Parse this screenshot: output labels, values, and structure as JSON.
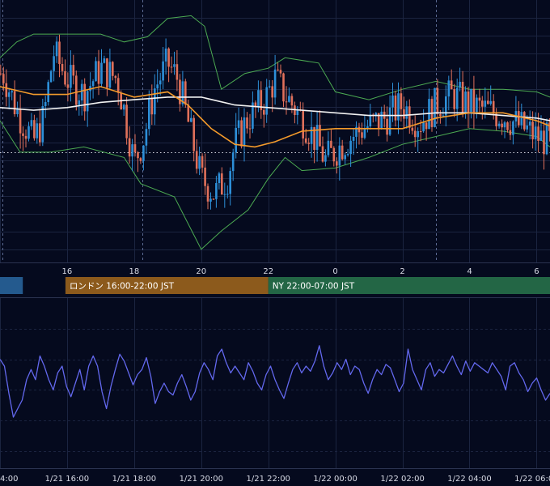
{
  "colors": {
    "background": "#050a1e",
    "grid": "#1b2440",
    "up_candle": "#2d8fd8",
    "down_candle": "#e0705a",
    "bollinger": "#4caa52",
    "ma_short": "#f39a2b",
    "ma_long": "#f2f2f2",
    "oscillator": "#6368ee",
    "session_tokyo": "#245a8e",
    "session_london": "#8c5a1c",
    "session_ny": "#236645",
    "axis_text": "#d8dbe6"
  },
  "chart_data": [
    {
      "type": "candlestick",
      "title": "",
      "hour_ticks": [
        {
          "hour": 14,
          "label": ""
        },
        {
          "hour": 16,
          "label": "16"
        },
        {
          "hour": 18,
          "label": "18"
        },
        {
          "hour": 20,
          "label": "20"
        },
        {
          "hour": 22,
          "label": "22"
        },
        {
          "hour": 24,
          "label": "0"
        },
        {
          "hour": 26,
          "label": "2"
        },
        {
          "hour": 28,
          "label": "4"
        },
        {
          "hour": 30,
          "label": "6"
        }
      ],
      "x_range_hours": [
        14,
        30.4
      ],
      "y_range": [
        0,
        100
      ],
      "reference_level": 42,
      "session_markers_hours": [
        14.08,
        18.25,
        27.0
      ],
      "close_path": [
        {
          "hour": 14.1,
          "value": 72
        },
        {
          "hour": 14.5,
          "value": 58
        },
        {
          "hour": 15.0,
          "value": 46
        },
        {
          "hour": 15.3,
          "value": 55
        },
        {
          "hour": 15.6,
          "value": 80
        },
        {
          "hour": 16.0,
          "value": 70
        },
        {
          "hour": 16.5,
          "value": 64
        },
        {
          "hour": 17.0,
          "value": 74
        },
        {
          "hour": 17.5,
          "value": 70
        },
        {
          "hour": 17.7,
          "value": 58
        },
        {
          "hour": 18.0,
          "value": 38
        },
        {
          "hour": 18.3,
          "value": 48
        },
        {
          "hour": 18.6,
          "value": 66
        },
        {
          "hour": 19.0,
          "value": 76
        },
        {
          "hour": 19.3,
          "value": 70
        },
        {
          "hour": 19.6,
          "value": 54
        },
        {
          "hour": 20.0,
          "value": 32
        },
        {
          "hour": 20.4,
          "value": 26
        },
        {
          "hour": 20.8,
          "value": 33
        },
        {
          "hour": 21.0,
          "value": 45
        },
        {
          "hour": 21.4,
          "value": 55
        },
        {
          "hour": 21.9,
          "value": 62
        },
        {
          "hour": 22.2,
          "value": 70
        },
        {
          "hour": 22.5,
          "value": 64
        },
        {
          "hour": 23.0,
          "value": 55
        },
        {
          "hour": 23.4,
          "value": 47
        },
        {
          "hour": 23.7,
          "value": 39
        },
        {
          "hour": 24.2,
          "value": 45
        },
        {
          "hour": 24.8,
          "value": 51
        },
        {
          "hour": 25.5,
          "value": 55
        },
        {
          "hour": 26.0,
          "value": 60
        },
        {
          "hour": 26.5,
          "value": 53
        },
        {
          "hour": 27.0,
          "value": 60
        },
        {
          "hour": 27.5,
          "value": 64
        },
        {
          "hour": 28.0,
          "value": 60
        },
        {
          "hour": 28.5,
          "value": 58
        },
        {
          "hour": 29.0,
          "value": 56
        },
        {
          "hour": 29.5,
          "value": 52
        },
        {
          "hour": 30.0,
          "value": 48
        },
        {
          "hour": 30.4,
          "value": 46
        }
      ],
      "bollinger_upper": [
        {
          "hour": 14.0,
          "value": 78
        },
        {
          "hour": 14.5,
          "value": 84
        },
        {
          "hour": 15.0,
          "value": 87
        },
        {
          "hour": 16.0,
          "value": 87
        },
        {
          "hour": 17.0,
          "value": 87
        },
        {
          "hour": 17.7,
          "value": 84
        },
        {
          "hour": 18.4,
          "value": 86
        },
        {
          "hour": 19.0,
          "value": 93
        },
        {
          "hour": 19.7,
          "value": 94
        },
        {
          "hour": 20.1,
          "value": 90
        },
        {
          "hour": 20.6,
          "value": 66
        },
        {
          "hour": 21.3,
          "value": 72
        },
        {
          "hour": 22.0,
          "value": 74
        },
        {
          "hour": 22.5,
          "value": 78
        },
        {
          "hour": 23.5,
          "value": 76
        },
        {
          "hour": 24.0,
          "value": 65
        },
        {
          "hour": 25.0,
          "value": 62
        },
        {
          "hour": 26.0,
          "value": 66
        },
        {
          "hour": 27.0,
          "value": 69
        },
        {
          "hour": 28.0,
          "value": 66
        },
        {
          "hour": 29.0,
          "value": 66
        },
        {
          "hour": 30.0,
          "value": 65
        },
        {
          "hour": 30.4,
          "value": 63
        }
      ],
      "bollinger_lower": [
        {
          "hour": 14.0,
          "value": 54
        },
        {
          "hour": 14.6,
          "value": 42
        },
        {
          "hour": 15.5,
          "value": 42
        },
        {
          "hour": 16.5,
          "value": 44
        },
        {
          "hour": 17.7,
          "value": 40
        },
        {
          "hour": 18.2,
          "value": 30
        },
        {
          "hour": 19.2,
          "value": 25
        },
        {
          "hour": 19.8,
          "value": 10
        },
        {
          "hour": 20.0,
          "value": 5
        },
        {
          "hour": 20.6,
          "value": 12
        },
        {
          "hour": 21.4,
          "value": 20
        },
        {
          "hour": 22.0,
          "value": 32
        },
        {
          "hour": 22.5,
          "value": 40
        },
        {
          "hour": 23.0,
          "value": 35
        },
        {
          "hour": 24.0,
          "value": 36
        },
        {
          "hour": 25.0,
          "value": 40
        },
        {
          "hour": 26.0,
          "value": 45
        },
        {
          "hour": 27.0,
          "value": 48
        },
        {
          "hour": 28.0,
          "value": 51
        },
        {
          "hour": 29.0,
          "value": 50
        },
        {
          "hour": 30.0,
          "value": 48
        },
        {
          "hour": 30.4,
          "value": 44
        }
      ],
      "ma_short_path": [
        {
          "hour": 14.0,
          "value": 67
        },
        {
          "hour": 15.0,
          "value": 64
        },
        {
          "hour": 16.0,
          "value": 64
        },
        {
          "hour": 17.0,
          "value": 67
        },
        {
          "hour": 18.0,
          "value": 63
        },
        {
          "hour": 19.0,
          "value": 65
        },
        {
          "hour": 19.6,
          "value": 60
        },
        {
          "hour": 20.3,
          "value": 51
        },
        {
          "hour": 21.0,
          "value": 45
        },
        {
          "hour": 21.6,
          "value": 44
        },
        {
          "hour": 22.2,
          "value": 46
        },
        {
          "hour": 23.0,
          "value": 50
        },
        {
          "hour": 24.0,
          "value": 51
        },
        {
          "hour": 25.0,
          "value": 51
        },
        {
          "hour": 26.0,
          "value": 51
        },
        {
          "hour": 27.0,
          "value": 55
        },
        {
          "hour": 28.0,
          "value": 57
        },
        {
          "hour": 29.0,
          "value": 57
        },
        {
          "hour": 30.0,
          "value": 54
        },
        {
          "hour": 30.4,
          "value": 52
        }
      ],
      "ma_long_path": [
        {
          "hour": 14.0,
          "value": 59
        },
        {
          "hour": 15.0,
          "value": 58
        },
        {
          "hour": 16.0,
          "value": 59
        },
        {
          "hour": 17.0,
          "value": 61
        },
        {
          "hour": 18.0,
          "value": 62
        },
        {
          "hour": 19.0,
          "value": 63
        },
        {
          "hour": 20.0,
          "value": 63
        },
        {
          "hour": 21.0,
          "value": 60
        },
        {
          "hour": 22.0,
          "value": 59
        },
        {
          "hour": 23.0,
          "value": 58
        },
        {
          "hour": 24.0,
          "value": 57
        },
        {
          "hour": 25.0,
          "value": 56
        },
        {
          "hour": 26.0,
          "value": 56
        },
        {
          "hour": 27.0,
          "value": 57
        },
        {
          "hour": 28.0,
          "value": 57
        },
        {
          "hour": 29.0,
          "value": 56
        },
        {
          "hour": 30.0,
          "value": 55
        },
        {
          "hour": 30.4,
          "value": 54
        }
      ]
    },
    {
      "type": "line",
      "title": "",
      "x_ticks": [
        {
          "hour": 14.0,
          "label": "4:00"
        },
        {
          "hour": 16.0,
          "label": "1/21 16:00"
        },
        {
          "hour": 18.0,
          "label": "1/21 18:00"
        },
        {
          "hour": 20.0,
          "label": "1/21 20:00"
        },
        {
          "hour": 22.0,
          "label": "1/21 22:00"
        },
        {
          "hour": 24.0,
          "label": "1/22 00:00"
        },
        {
          "hour": 26.0,
          "label": "1/22 02:00"
        },
        {
          "hour": 28.0,
          "label": "1/22 04:00"
        },
        {
          "hour": 30.0,
          "label": "1/22 06:00"
        }
      ],
      "x_range_hours": [
        14,
        30.4
      ],
      "y_range": [
        0,
        100
      ],
      "series": [
        {
          "values": [
            64,
            60,
            44,
            30,
            35,
            40,
            52,
            58,
            52,
            66,
            60,
            52,
            46,
            56,
            60,
            48,
            42,
            50,
            58,
            46,
            60,
            66,
            60,
            45,
            35,
            48,
            58,
            67,
            63,
            56,
            49,
            55,
            58,
            65,
            54,
            38,
            45,
            50,
            45,
            43,
            50,
            55,
            48,
            40,
            45,
            56,
            62,
            58,
            52,
            66,
            70,
            62,
            56,
            60,
            56,
            52,
            62,
            57,
            50,
            46,
            55,
            60,
            52,
            46,
            41,
            50,
            58,
            62,
            56,
            60,
            57,
            63,
            72,
            60,
            52,
            56,
            62,
            58,
            64,
            55,
            60,
            58,
            50,
            44,
            52,
            58,
            55,
            61,
            59,
            52,
            45,
            50,
            70,
            58,
            52,
            46,
            58,
            62,
            54,
            58,
            56,
            61,
            66,
            60,
            55,
            63,
            57,
            62,
            60,
            58,
            56,
            62,
            58,
            54,
            46,
            60,
            62,
            56,
            52,
            45,
            50,
            53,
            46,
            40,
            44
          ]
        }
      ]
    }
  ],
  "sessions": [
    {
      "label": "",
      "start_hour": 13.2,
      "end_hour": 14.68
    },
    {
      "label": "ロンドン 16:00-22:00 JST",
      "start_hour": 15.95,
      "end_hour": 22.0
    },
    {
      "label": "NY 22:00-07:00 JST",
      "start_hour": 22.0,
      "end_hour": 31.0
    }
  ]
}
